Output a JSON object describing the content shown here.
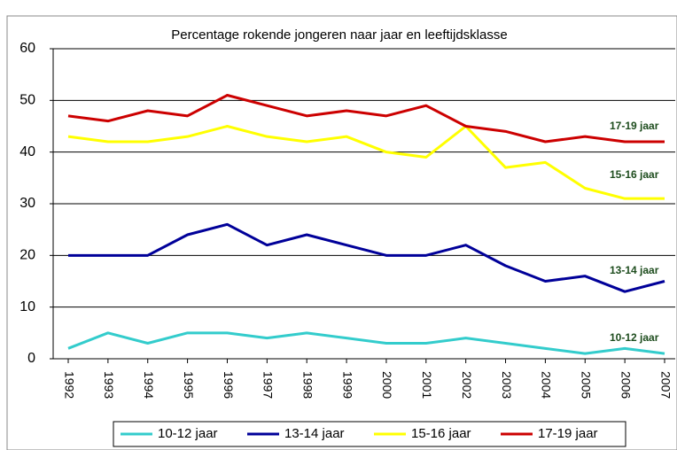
{
  "chart_data": {
    "type": "line",
    "title": "Percentage rokende jongeren naar jaar en leeftijdsklasse",
    "categories": [
      "1992",
      "1993",
      "1994",
      "1995",
      "1996",
      "1997",
      "1998",
      "1999",
      "2000",
      "2001",
      "2002",
      "2003",
      "2004",
      "2005",
      "2006",
      "2007"
    ],
    "series": [
      {
        "name": "10-12 jaar",
        "color": "#33cccc",
        "values": [
          2,
          5,
          3,
          5,
          5,
          4,
          5,
          4,
          3,
          3,
          4,
          3,
          2,
          1,
          2,
          1
        ]
      },
      {
        "name": "13-14 jaar",
        "color": "#000099",
        "values": [
          20,
          20,
          20,
          24,
          26,
          22,
          24,
          22,
          20,
          20,
          22,
          18,
          15,
          16,
          13,
          15
        ]
      },
      {
        "name": "15-16 jaar",
        "color": "#ffff00",
        "values": [
          43,
          42,
          42,
          43,
          45,
          43,
          42,
          43,
          40,
          39,
          45,
          37,
          38,
          33,
          31,
          31
        ]
      },
      {
        "name": "17-19 jaar",
        "color": "#cc0000",
        "values": [
          47,
          46,
          48,
          47,
          51,
          49,
          47,
          48,
          47,
          49,
          45,
          44,
          42,
          43,
          42,
          42
        ]
      }
    ],
    "ylim": [
      0,
      60
    ],
    "yticks": [
      0,
      10,
      20,
      30,
      40,
      50,
      60
    ],
    "grid": true,
    "legend": "bottom"
  }
}
